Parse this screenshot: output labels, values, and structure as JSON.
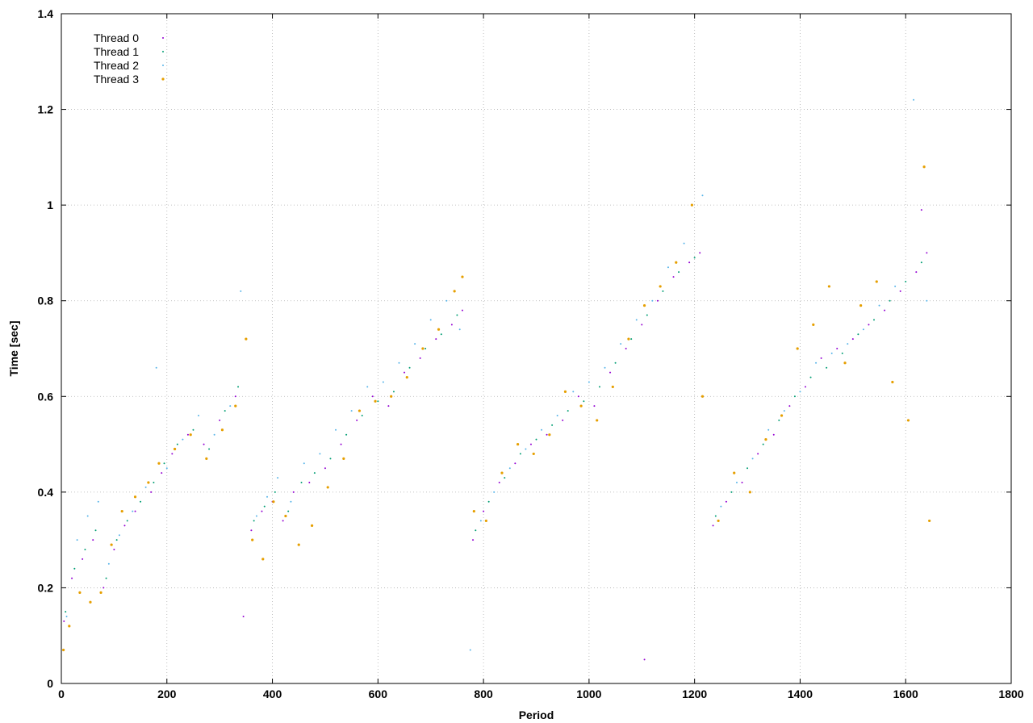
{
  "chart_data": {
    "type": "scatter",
    "title": "",
    "xlabel": "Period",
    "ylabel": "Time [sec]",
    "xlim": [
      0,
      1800
    ],
    "ylim": [
      0,
      1.4
    ],
    "x_ticks": [
      "0",
      "200",
      "400",
      "600",
      "800",
      "1000",
      "1200",
      "1400",
      "1600",
      "1800"
    ],
    "y_ticks": [
      "0",
      "0.2",
      "0.4",
      "0.6",
      "0.8",
      "1",
      "1.2",
      "1.4"
    ],
    "grid": true,
    "legend_position": "top-left",
    "series": [
      {
        "name": "Thread 0",
        "color": "#9400d3",
        "points": [
          [
            5,
            0.13
          ],
          [
            20,
            0.22
          ],
          [
            40,
            0.26
          ],
          [
            60,
            0.3
          ],
          [
            80,
            0.2
          ],
          [
            100,
            0.28
          ],
          [
            120,
            0.33
          ],
          [
            140,
            0.36
          ],
          [
            170,
            0.4
          ],
          [
            190,
            0.44
          ],
          [
            210,
            0.48
          ],
          [
            240,
            0.52
          ],
          [
            270,
            0.5
          ],
          [
            300,
            0.55
          ],
          [
            330,
            0.6
          ],
          [
            345,
            0.14
          ],
          [
            360,
            0.32
          ],
          [
            380,
            0.36
          ],
          [
            400,
            0.38
          ],
          [
            420,
            0.34
          ],
          [
            440,
            0.4
          ],
          [
            470,
            0.42
          ],
          [
            500,
            0.45
          ],
          [
            530,
            0.5
          ],
          [
            560,
            0.55
          ],
          [
            590,
            0.6
          ],
          [
            620,
            0.58
          ],
          [
            650,
            0.65
          ],
          [
            680,
            0.68
          ],
          [
            710,
            0.72
          ],
          [
            740,
            0.75
          ],
          [
            760,
            0.78
          ],
          [
            780,
            0.3
          ],
          [
            800,
            0.36
          ],
          [
            830,
            0.42
          ],
          [
            860,
            0.46
          ],
          [
            890,
            0.5
          ],
          [
            920,
            0.52
          ],
          [
            950,
            0.55
          ],
          [
            980,
            0.6
          ],
          [
            1010,
            0.58
          ],
          [
            1040,
            0.65
          ],
          [
            1070,
            0.7
          ],
          [
            1100,
            0.75
          ],
          [
            1130,
            0.8
          ],
          [
            1160,
            0.85
          ],
          [
            1190,
            0.88
          ],
          [
            1210,
            0.9
          ],
          [
            1235,
            0.33
          ],
          [
            1260,
            0.38
          ],
          [
            1290,
            0.42
          ],
          [
            1320,
            0.48
          ],
          [
            1350,
            0.52
          ],
          [
            1380,
            0.58
          ],
          [
            1410,
            0.62
          ],
          [
            1440,
            0.68
          ],
          [
            1470,
            0.7
          ],
          [
            1500,
            0.72
          ],
          [
            1530,
            0.75
          ],
          [
            1560,
            0.78
          ],
          [
            1590,
            0.82
          ],
          [
            1620,
            0.86
          ],
          [
            1640,
            0.9
          ],
          [
            1105,
            0.05
          ],
          [
            1630,
            0.99
          ]
        ]
      },
      {
        "name": "Thread 1",
        "color": "#009e73",
        "points": [
          [
            8,
            0.15
          ],
          [
            25,
            0.24
          ],
          [
            45,
            0.28
          ],
          [
            65,
            0.32
          ],
          [
            85,
            0.22
          ],
          [
            105,
            0.3
          ],
          [
            125,
            0.34
          ],
          [
            150,
            0.38
          ],
          [
            175,
            0.42
          ],
          [
            195,
            0.46
          ],
          [
            220,
            0.5
          ],
          [
            250,
            0.53
          ],
          [
            280,
            0.49
          ],
          [
            310,
            0.57
          ],
          [
            335,
            0.62
          ],
          [
            365,
            0.34
          ],
          [
            385,
            0.37
          ],
          [
            405,
            0.4
          ],
          [
            430,
            0.36
          ],
          [
            455,
            0.42
          ],
          [
            480,
            0.44
          ],
          [
            510,
            0.47
          ],
          [
            540,
            0.52
          ],
          [
            570,
            0.56
          ],
          [
            600,
            0.59
          ],
          [
            630,
            0.61
          ],
          [
            660,
            0.66
          ],
          [
            690,
            0.7
          ],
          [
            720,
            0.73
          ],
          [
            750,
            0.77
          ],
          [
            785,
            0.32
          ],
          [
            810,
            0.38
          ],
          [
            840,
            0.43
          ],
          [
            870,
            0.48
          ],
          [
            900,
            0.51
          ],
          [
            930,
            0.54
          ],
          [
            960,
            0.57
          ],
          [
            990,
            0.59
          ],
          [
            1020,
            0.62
          ],
          [
            1050,
            0.67
          ],
          [
            1080,
            0.72
          ],
          [
            1110,
            0.77
          ],
          [
            1140,
            0.82
          ],
          [
            1170,
            0.86
          ],
          [
            1200,
            0.89
          ],
          [
            1240,
            0.35
          ],
          [
            1270,
            0.4
          ],
          [
            1300,
            0.45
          ],
          [
            1330,
            0.5
          ],
          [
            1360,
            0.55
          ],
          [
            1390,
            0.6
          ],
          [
            1420,
            0.64
          ],
          [
            1450,
            0.66
          ],
          [
            1480,
            0.69
          ],
          [
            1510,
            0.73
          ],
          [
            1540,
            0.76
          ],
          [
            1570,
            0.8
          ],
          [
            1600,
            0.84
          ],
          [
            1630,
            0.88
          ]
        ]
      },
      {
        "name": "Thread 2",
        "color": "#56b4e9",
        "points": [
          [
            10,
            0.14
          ],
          [
            30,
            0.3
          ],
          [
            50,
            0.35
          ],
          [
            70,
            0.38
          ],
          [
            90,
            0.25
          ],
          [
            110,
            0.31
          ],
          [
            135,
            0.36
          ],
          [
            160,
            0.41
          ],
          [
            180,
            0.66
          ],
          [
            200,
            0.45
          ],
          [
            230,
            0.51
          ],
          [
            260,
            0.56
          ],
          [
            290,
            0.52
          ],
          [
            320,
            0.58
          ],
          [
            340,
            0.82
          ],
          [
            370,
            0.35
          ],
          [
            390,
            0.39
          ],
          [
            410,
            0.43
          ],
          [
            435,
            0.38
          ],
          [
            460,
            0.46
          ],
          [
            490,
            0.48
          ],
          [
            520,
            0.53
          ],
          [
            550,
            0.57
          ],
          [
            580,
            0.62
          ],
          [
            610,
            0.63
          ],
          [
            640,
            0.67
          ],
          [
            670,
            0.71
          ],
          [
            700,
            0.76
          ],
          [
            730,
            0.8
          ],
          [
            755,
            0.74
          ],
          [
            775,
            0.07
          ],
          [
            795,
            0.34
          ],
          [
            820,
            0.4
          ],
          [
            850,
            0.45
          ],
          [
            880,
            0.49
          ],
          [
            910,
            0.53
          ],
          [
            940,
            0.56
          ],
          [
            970,
            0.61
          ],
          [
            1000,
            0.63
          ],
          [
            1030,
            0.66
          ],
          [
            1060,
            0.71
          ],
          [
            1090,
            0.76
          ],
          [
            1120,
            0.8
          ],
          [
            1150,
            0.87
          ],
          [
            1180,
            0.92
          ],
          [
            1215,
            1.02
          ],
          [
            1250,
            0.37
          ],
          [
            1280,
            0.42
          ],
          [
            1310,
            0.47
          ],
          [
            1340,
            0.53
          ],
          [
            1370,
            0.57
          ],
          [
            1400,
            0.61
          ],
          [
            1430,
            0.67
          ],
          [
            1460,
            0.69
          ],
          [
            1490,
            0.71
          ],
          [
            1520,
            0.74
          ],
          [
            1550,
            0.79
          ],
          [
            1580,
            0.83
          ],
          [
            1615,
            1.22
          ],
          [
            1640,
            0.8
          ]
        ]
      },
      {
        "name": "Thread 3",
        "color": "#e69f00",
        "points": [
          [
            4,
            0.07
          ],
          [
            15,
            0.12
          ],
          [
            35,
            0.19
          ],
          [
            55,
            0.17
          ],
          [
            75,
            0.19
          ],
          [
            95,
            0.29
          ],
          [
            115,
            0.36
          ],
          [
            140,
            0.39
          ],
          [
            165,
            0.42
          ],
          [
            185,
            0.46
          ],
          [
            215,
            0.49
          ],
          [
            245,
            0.52
          ],
          [
            275,
            0.47
          ],
          [
            305,
            0.53
          ],
          [
            330,
            0.58
          ],
          [
            350,
            0.72
          ],
          [
            362,
            0.3
          ],
          [
            382,
            0.26
          ],
          [
            402,
            0.38
          ],
          [
            425,
            0.35
          ],
          [
            450,
            0.29
          ],
          [
            475,
            0.33
          ],
          [
            505,
            0.41
          ],
          [
            535,
            0.47
          ],
          [
            565,
            0.57
          ],
          [
            595,
            0.59
          ],
          [
            625,
            0.6
          ],
          [
            655,
            0.64
          ],
          [
            685,
            0.7
          ],
          [
            715,
            0.74
          ],
          [
            745,
            0.82
          ],
          [
            760,
            0.85
          ],
          [
            782,
            0.36
          ],
          [
            805,
            0.34
          ],
          [
            835,
            0.44
          ],
          [
            865,
            0.5
          ],
          [
            895,
            0.48
          ],
          [
            925,
            0.52
          ],
          [
            955,
            0.61
          ],
          [
            985,
            0.58
          ],
          [
            1015,
            0.55
          ],
          [
            1045,
            0.62
          ],
          [
            1075,
            0.72
          ],
          [
            1105,
            0.79
          ],
          [
            1135,
            0.83
          ],
          [
            1165,
            0.88
          ],
          [
            1195,
            1.0
          ],
          [
            1215,
            0.6
          ],
          [
            1245,
            0.34
          ],
          [
            1275,
            0.44
          ],
          [
            1305,
            0.4
          ],
          [
            1335,
            0.51
          ],
          [
            1365,
            0.56
          ],
          [
            1395,
            0.7
          ],
          [
            1425,
            0.75
          ],
          [
            1455,
            0.83
          ],
          [
            1485,
            0.67
          ],
          [
            1515,
            0.79
          ],
          [
            1545,
            0.84
          ],
          [
            1575,
            0.63
          ],
          [
            1605,
            0.55
          ],
          [
            1635,
            1.08
          ],
          [
            1645,
            0.34
          ]
        ]
      }
    ]
  }
}
